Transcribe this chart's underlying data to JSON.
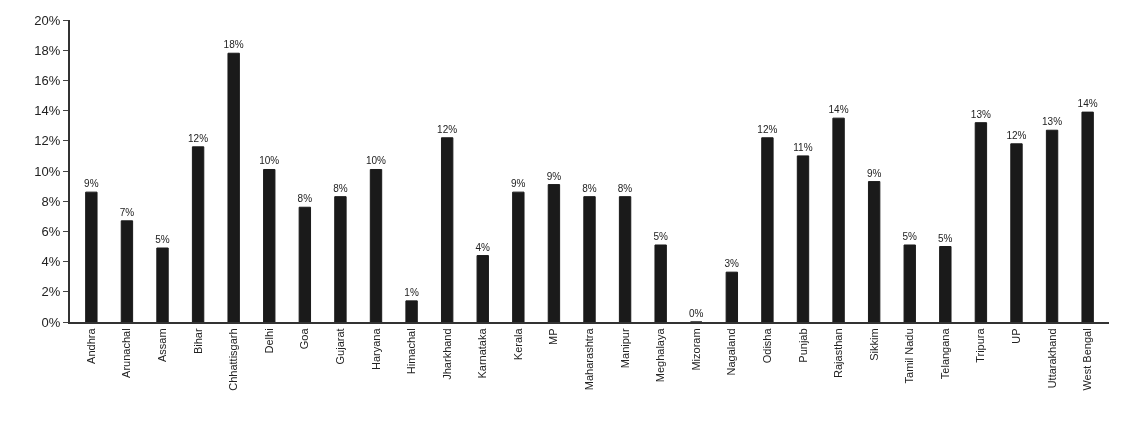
{
  "chart_data": {
    "type": "bar",
    "categories": [
      "Andhra",
      "Arunachal",
      "Assam",
      "Bihar",
      "Chhattisgarh",
      "Delhi",
      "Goa",
      "Gujarat",
      "Haryana",
      "Himachal",
      "Jharkhand",
      "Karnataka",
      "Kerala",
      "MP",
      "Maharashtra",
      "Manipur",
      "Meghalaya",
      "Mizoram",
      "Nagaland",
      "Odisha",
      "Punjab",
      "Rajasthan",
      "Sikkim",
      "Tamil Nadu",
      "Telangana",
      "Tripura",
      "UP",
      "Uttarakhand",
      "West Bengal"
    ],
    "values": [
      8.6,
      6.7,
      4.9,
      11.6,
      17.8,
      10.1,
      7.6,
      8.3,
      10.1,
      1.4,
      12.2,
      4.4,
      8.6,
      9.1,
      8.3,
      8.3,
      5.1,
      0,
      3.3,
      12.2,
      11.0,
      13.5,
      9.3,
      5.1,
      5.0,
      13.2,
      11.8,
      12.7,
      13.9
    ],
    "value_labels": [
      "9%",
      "7%",
      "5%",
      "12%",
      "18%",
      "10%",
      "8%",
      "8%",
      "10%",
      "1%",
      "12%",
      "4%",
      "9%",
      "9%",
      "8%",
      "8%",
      "5%",
      "0%",
      "3%",
      "12%",
      "11%",
      "14%",
      "9%",
      "5%",
      "5%",
      "13%",
      "12%",
      "13%",
      "14%"
    ],
    "color": "#1a1a1a",
    "ylim": [
      0,
      20
    ],
    "yticks": [
      {
        "value": 0,
        "label": "0%"
      },
      {
        "value": 2,
        "label": "2%"
      },
      {
        "value": 4,
        "label": "4%"
      },
      {
        "value": 6,
        "label": "6%"
      },
      {
        "value": 8,
        "label": "8%"
      },
      {
        "value": 10,
        "label": "10%"
      },
      {
        "value": 12,
        "label": "12%"
      },
      {
        "value": 14,
        "label": "14%"
      },
      {
        "value": 16,
        "label": "16%"
      },
      {
        "value": 18,
        "label": "18%"
      },
      {
        "value": 20,
        "label": "20%"
      }
    ],
    "grid": false
  }
}
